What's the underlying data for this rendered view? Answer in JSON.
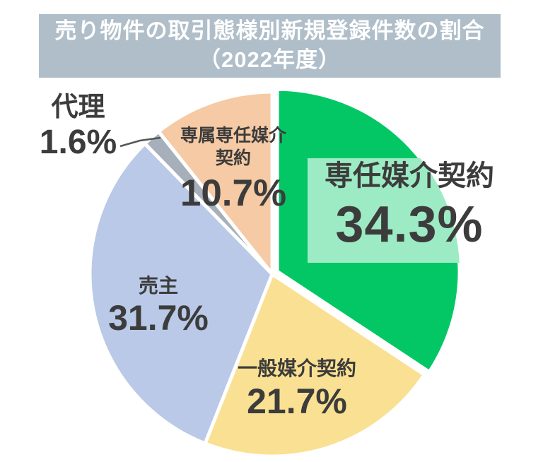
{
  "title": {
    "line1": "売り物件の取引態様別新規登録件数の割合",
    "line2": "（2022年度）"
  },
  "colors": {
    "background": "#FFFFFF",
    "title_bg": "#AFBEC9",
    "title_text": "#FFFFFF",
    "text": "#3C3C3C",
    "highlight_box": "#9CEBC4",
    "leader_line": "#555555"
  },
  "chart_data": {
    "type": "pie",
    "title": "売り物件の取引態様別新規登録件数の割合（2022年度）",
    "unit": "%",
    "total": 100,
    "start_angle_deg": 0,
    "direction": "clockwise",
    "legend_position": "none",
    "labels_on_chart": true,
    "segments": [
      {
        "id": "exclusive-agency",
        "label": "専任媒介契約",
        "value": 34.3,
        "pct_label": "34.3%",
        "color": "#03C765",
        "exploded": true,
        "highlighted": true
      },
      {
        "id": "general-agency",
        "label": "一般媒介契約",
        "value": 21.7,
        "pct_label": "21.7%",
        "color": "#FAE092",
        "exploded": false,
        "highlighted": false
      },
      {
        "id": "seller",
        "label": "売主",
        "value": 31.7,
        "pct_label": "31.7%",
        "color": "#B9C9E7",
        "exploded": false,
        "highlighted": false
      },
      {
        "id": "agent",
        "label": "代理",
        "value": 1.6,
        "pct_label": "1.6%",
        "color": "#A7AFBA",
        "exploded": false,
        "highlighted": false,
        "callout": true
      },
      {
        "id": "exclusive-right-to-sell",
        "label": "専属専任媒介契約",
        "value": 10.7,
        "pct_label": "10.7%",
        "color": "#F5CAA4",
        "exploded": false,
        "highlighted": false
      }
    ]
  }
}
